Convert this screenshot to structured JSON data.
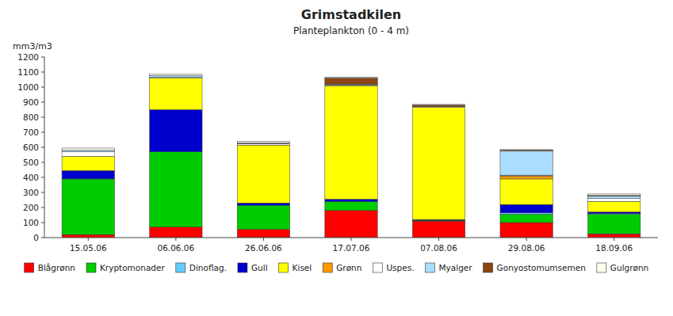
{
  "chart_data": {
    "type": "bar",
    "stacked": true,
    "title": "Grimstadkilen",
    "subtitle": "Planteplankton (0 - 4 m)",
    "ylabel": "mm3/m3",
    "categories": [
      "15.05.06",
      "06.06.06",
      "26.06.06",
      "17.07.06",
      "07.08.06",
      "29.08.06",
      "18.09.06"
    ],
    "series": [
      {
        "name": "Blågrønn",
        "color": "#ff0000",
        "values": [
          20,
          70,
          55,
          180,
          110,
          100,
          25
        ]
      },
      {
        "name": "Kryptomonader",
        "color": "#00cc00",
        "values": [
          370,
          500,
          160,
          60,
          5,
          55,
          130
        ]
      },
      {
        "name": "Dinoflag.",
        "color": "#66ccff",
        "values": [
          0,
          0,
          0,
          0,
          0,
          10,
          5
        ]
      },
      {
        "name": "Gull",
        "color": "#0000cc",
        "values": [
          55,
          280,
          15,
          15,
          5,
          55,
          10
        ]
      },
      {
        "name": "Kisel",
        "color": "#ffff00",
        "values": [
          95,
          210,
          385,
          755,
          745,
          170,
          70
        ]
      },
      {
        "name": "Grønn",
        "color": "#ff9900",
        "values": [
          0,
          0,
          0,
          0,
          0,
          20,
          0
        ]
      },
      {
        "name": "Uspes.",
        "color": "#ffffff",
        "values": [
          30,
          5,
          10,
          5,
          5,
          5,
          20
        ]
      },
      {
        "name": "Myalger",
        "color": "#aaddff",
        "values": [
          10,
          10,
          5,
          5,
          0,
          160,
          15
        ]
      },
      {
        "name": "Gonyostomumsemen",
        "color": "#8B4513",
        "values": [
          0,
          0,
          0,
          40,
          10,
          5,
          5
        ]
      },
      {
        "name": "Gulgrønn",
        "color": "#fffff0",
        "values": [
          15,
          10,
          10,
          5,
          5,
          5,
          10
        ]
      }
    ],
    "ylim": [
      0,
      1200
    ],
    "yticks": [
      0,
      100,
      200,
      300,
      400,
      500,
      600,
      700,
      800,
      900,
      1000,
      1100,
      1200
    ],
    "grid": false,
    "legend": "bottom"
  }
}
